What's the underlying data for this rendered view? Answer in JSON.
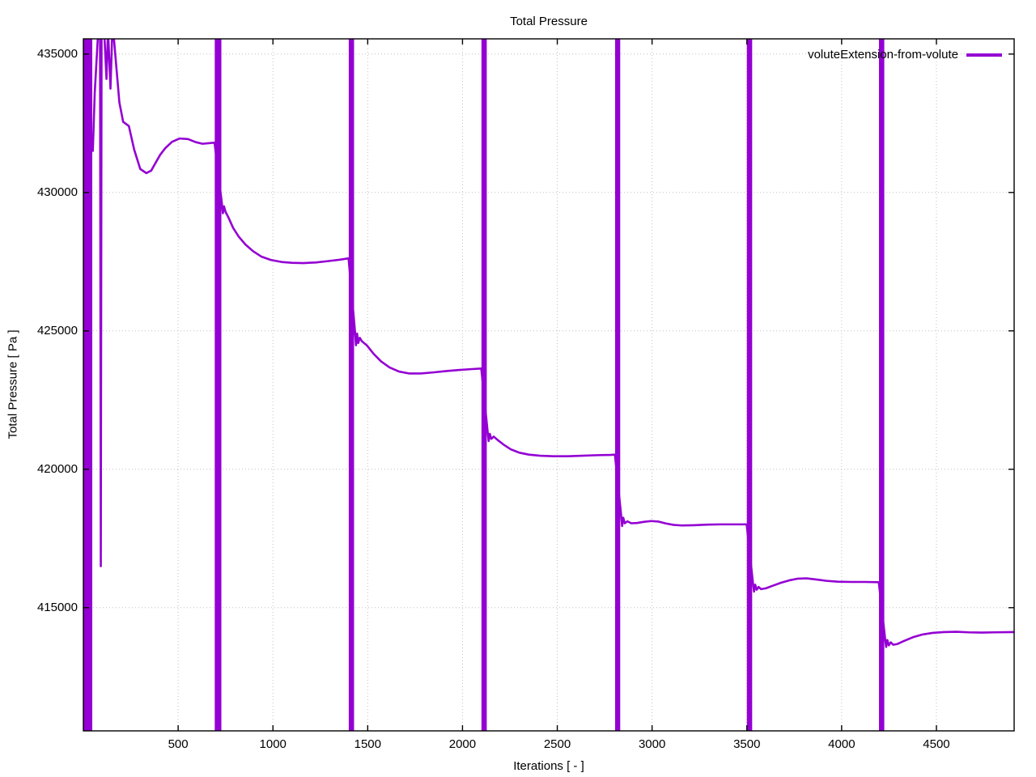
{
  "chart_data": {
    "type": "line",
    "title": "Total Pressure",
    "xlabel": "Iterations [ - ]",
    "ylabel": "Total Pressure [ Pa ]",
    "xlim": [
      0,
      4910
    ],
    "ylim": [
      410550,
      435550
    ],
    "xticks": [
      500,
      1000,
      1500,
      2000,
      2500,
      3000,
      3500,
      4000,
      4500
    ],
    "yticks": [
      415000,
      420000,
      425000,
      430000,
      435000
    ],
    "grid": true,
    "grid_style": "dotted",
    "legend_position": "top-right-inside",
    "line_color": "#9400d3",
    "grid_color": "#c0c0c0",
    "border_color": "#000000",
    "series": [
      {
        "name": "voluteExtension-from-volute",
        "color": "#9400d3",
        "spike_note": "vertical oscillation bands spanning the full visible y-range (clipped at plot top and bottom), occurring at roughly every 700 iterations",
        "spike_bands": [
          {
            "x_start": 0,
            "x_end": 47
          },
          {
            "x_start": 693,
            "x_end": 728
          },
          {
            "x_start": 1400,
            "x_end": 1428
          },
          {
            "x_start": 2100,
            "x_end": 2128
          },
          {
            "x_start": 2805,
            "x_end": 2832
          },
          {
            "x_start": 3500,
            "x_end": 3528
          },
          {
            "x_start": 4197,
            "x_end": 4225
          }
        ],
        "points": [
          [
            50,
            431500
          ],
          [
            60,
            433600
          ],
          [
            78,
            435800
          ],
          [
            88,
            435800
          ],
          [
            92,
            416500
          ],
          [
            96,
            435800
          ],
          [
            110,
            435800
          ],
          [
            122,
            434100
          ],
          [
            130,
            435900
          ],
          [
            143,
            433750
          ],
          [
            153,
            435900
          ],
          [
            162,
            435500
          ],
          [
            175,
            434450
          ],
          [
            190,
            433250
          ],
          [
            210,
            432550
          ],
          [
            240,
            432400
          ],
          [
            268,
            431550
          ],
          [
            300,
            430850
          ],
          [
            332,
            430700
          ],
          [
            358,
            430790
          ],
          [
            380,
            431060
          ],
          [
            405,
            431360
          ],
          [
            432,
            431600
          ],
          [
            468,
            431830
          ],
          [
            508,
            431950
          ],
          [
            552,
            431930
          ],
          [
            592,
            431820
          ],
          [
            628,
            431760
          ],
          [
            660,
            431780
          ],
          [
            692,
            431800
          ],
          [
            730,
            429650
          ],
          [
            736,
            429250
          ],
          [
            742,
            429500
          ],
          [
            750,
            429300
          ],
          [
            765,
            429100
          ],
          [
            790,
            428720
          ],
          [
            820,
            428400
          ],
          [
            855,
            428120
          ],
          [
            895,
            427880
          ],
          [
            940,
            427680
          ],
          [
            990,
            427560
          ],
          [
            1045,
            427490
          ],
          [
            1100,
            427460
          ],
          [
            1160,
            427450
          ],
          [
            1225,
            427470
          ],
          [
            1290,
            427520
          ],
          [
            1350,
            427570
          ],
          [
            1399,
            427620
          ],
          [
            1432,
            425050
          ],
          [
            1438,
            424480
          ],
          [
            1444,
            424900
          ],
          [
            1450,
            424560
          ],
          [
            1458,
            424750
          ],
          [
            1470,
            424620
          ],
          [
            1495,
            424480
          ],
          [
            1530,
            424180
          ],
          [
            1570,
            423900
          ],
          [
            1615,
            423680
          ],
          [
            1665,
            423530
          ],
          [
            1720,
            423460
          ],
          [
            1780,
            423460
          ],
          [
            1845,
            423500
          ],
          [
            1915,
            423550
          ],
          [
            1985,
            423590
          ],
          [
            2050,
            423620
          ],
          [
            2099,
            423640
          ],
          [
            2132,
            421400
          ],
          [
            2138,
            421020
          ],
          [
            2144,
            421280
          ],
          [
            2152,
            421100
          ],
          [
            2165,
            421180
          ],
          [
            2185,
            421060
          ],
          [
            2215,
            420900
          ],
          [
            2255,
            420720
          ],
          [
            2300,
            420600
          ],
          [
            2350,
            420530
          ],
          [
            2410,
            420490
          ],
          [
            2480,
            420470
          ],
          [
            2555,
            420470
          ],
          [
            2630,
            420490
          ],
          [
            2710,
            420510
          ],
          [
            2780,
            420520
          ],
          [
            2804,
            420530
          ],
          [
            2836,
            418400
          ],
          [
            2842,
            417950
          ],
          [
            2848,
            418250
          ],
          [
            2856,
            418050
          ],
          [
            2870,
            418120
          ],
          [
            2890,
            418050
          ],
          [
            2920,
            418060
          ],
          [
            2955,
            418100
          ],
          [
            2995,
            418130
          ],
          [
            3035,
            418110
          ],
          [
            3075,
            418040
          ],
          [
            3115,
            417990
          ],
          [
            3160,
            417970
          ],
          [
            3220,
            417980
          ],
          [
            3290,
            418000
          ],
          [
            3360,
            418010
          ],
          [
            3430,
            418010
          ],
          [
            3499,
            418010
          ],
          [
            3532,
            415900
          ],
          [
            3538,
            415580
          ],
          [
            3544,
            415830
          ],
          [
            3552,
            415650
          ],
          [
            3562,
            415750
          ],
          [
            3575,
            415670
          ],
          [
            3600,
            415700
          ],
          [
            3635,
            415790
          ],
          [
            3680,
            415900
          ],
          [
            3725,
            415990
          ],
          [
            3770,
            416050
          ],
          [
            3815,
            416060
          ],
          [
            3865,
            416020
          ],
          [
            3920,
            415970
          ],
          [
            3980,
            415940
          ],
          [
            4050,
            415930
          ],
          [
            4120,
            415930
          ],
          [
            4196,
            415920
          ],
          [
            4229,
            413900
          ],
          [
            4235,
            413580
          ],
          [
            4241,
            413830
          ],
          [
            4249,
            413640
          ],
          [
            4259,
            413750
          ],
          [
            4272,
            413660
          ],
          [
            4295,
            413690
          ],
          [
            4330,
            413800
          ],
          [
            4375,
            413930
          ],
          [
            4425,
            414030
          ],
          [
            4480,
            414090
          ],
          [
            4540,
            414120
          ],
          [
            4605,
            414130
          ],
          [
            4670,
            414110
          ],
          [
            4740,
            414100
          ],
          [
            4810,
            414110
          ],
          [
            4905,
            414120
          ]
        ]
      }
    ]
  }
}
